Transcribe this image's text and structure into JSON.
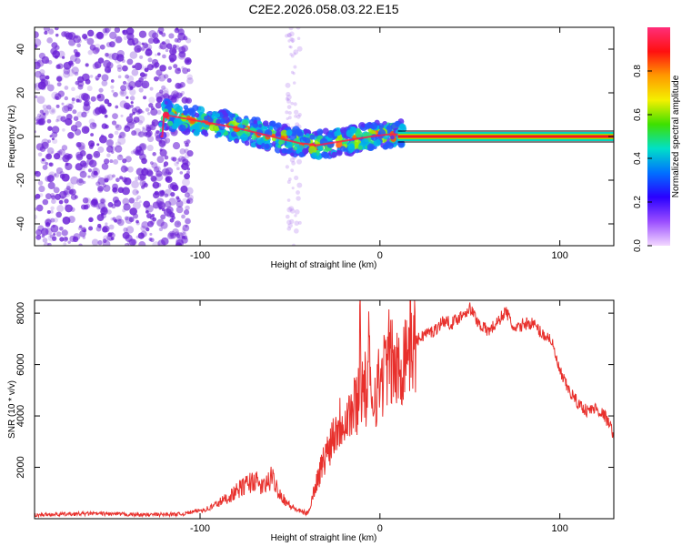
{
  "title": "C2E2.2026.058.03.22.E15",
  "colors": {
    "line": "#e8302c",
    "axis": "#000000",
    "scatter": "#6a1fd6",
    "colorbar_stops": [
      "#ff2e7a",
      "#ff1010",
      "#ff9a00",
      "#f4f000",
      "#3ee000",
      "#00e0c8",
      "#0070ff",
      "#2a00ff",
      "#9a4dff",
      "#f3d8ff"
    ]
  },
  "chart_data": [
    {
      "type": "heatmap",
      "name": "spectrogram",
      "xlabel": "Height of straight line (km)",
      "ylabel": "Frequency (Hz)",
      "xlim": [
        -192,
        130
      ],
      "ylim": [
        -50,
        50
      ],
      "xticks": [
        -100,
        0,
        100
      ],
      "xtick_labels": [
        "-100",
        "0",
        "100"
      ],
      "yticks": [
        -40,
        -20,
        0,
        20,
        40
      ],
      "ytick_labels": [
        "-40",
        "-20",
        "0",
        "20",
        "40"
      ],
      "noise_region_x": [
        -192,
        -105
      ],
      "noise_streak_x": [
        -52,
        -44
      ],
      "ridge": {
        "x": [
          -120,
          -100,
          -80,
          -60,
          -45,
          -35,
          -20,
          -5,
          5,
          10,
          130
        ],
        "y": [
          10,
          7,
          4,
          0,
          -3,
          -4,
          -2,
          0,
          1,
          1,
          0
        ]
      },
      "colorbar": {
        "label": "Normalized spectral amplitude",
        "range": [
          0,
          1
        ],
        "ticks": [
          0,
          0.2,
          0.4,
          0.6,
          0.8
        ],
        "tick_labels": [
          "0.0",
          "0.2",
          "0.4",
          "0.6",
          "0.8"
        ]
      }
    },
    {
      "type": "line",
      "name": "snr",
      "xlabel": "Height of straight line (km)",
      "ylabel": "SNR (10 * v/v)",
      "xlim": [
        -192,
        130
      ],
      "ylim": [
        0,
        8500
      ],
      "xticks": [
        -100,
        0,
        100
      ],
      "xtick_labels": [
        "-100",
        "0",
        "100"
      ],
      "yticks": [
        2000,
        4000,
        6000,
        8000
      ],
      "ytick_labels": [
        "2000",
        "4000",
        "6000",
        "8000"
      ],
      "x": [
        -192,
        -160,
        -130,
        -110,
        -95,
        -85,
        -75,
        -70,
        -65,
        -60,
        -55,
        -50,
        -45,
        -40,
        -35,
        -30,
        -25,
        -20,
        -15,
        -10,
        -5,
        0,
        5,
        10,
        15,
        20,
        25,
        30,
        35,
        40,
        45,
        50,
        55,
        60,
        65,
        70,
        75,
        80,
        85,
        90,
        95,
        100,
        105,
        110,
        115,
        120,
        125,
        130
      ],
      "values": [
        150,
        200,
        150,
        180,
        400,
        800,
        1300,
        1500,
        1200,
        1600,
        900,
        500,
        300,
        200,
        1500,
        2500,
        3500,
        4000,
        4200,
        5200,
        4700,
        5300,
        6300,
        5600,
        6800,
        6900,
        7200,
        7300,
        7700,
        7600,
        7900,
        8200,
        7600,
        7300,
        7600,
        8100,
        7300,
        7600,
        7600,
        7200,
        7000,
        5700,
        5000,
        4500,
        4200,
        4300,
        4000,
        3300
      ],
      "spikes": [
        {
          "x": -11,
          "value": 7900
        },
        {
          "x": -6,
          "value": 7000
        }
      ]
    }
  ]
}
